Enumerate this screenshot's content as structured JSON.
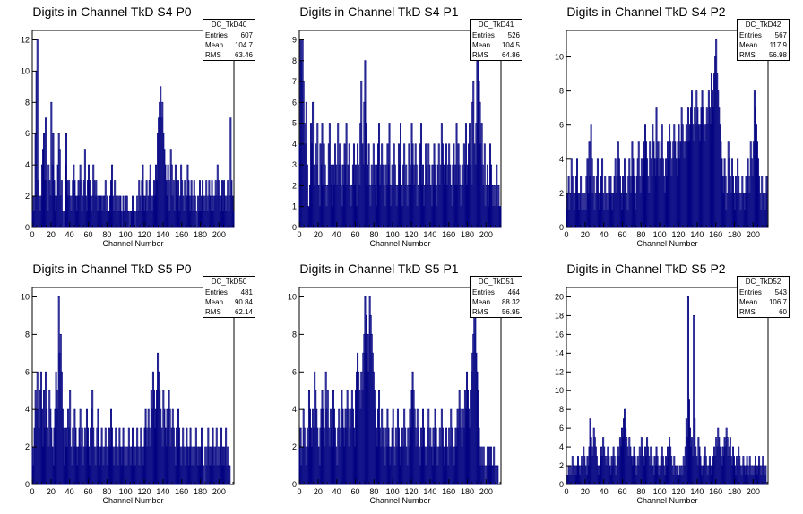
{
  "panels": [
    {
      "title": "Digits in Channel TkD S4 P0",
      "stats": {
        "name": "DC_TkD40",
        "entries_label": "Entries",
        "entries": "607",
        "mean_label": "Mean",
        "mean": "104.7",
        "rms_label": "RMS",
        "rms": "63.46"
      },
      "xlabel": "Channel Number"
    },
    {
      "title": "Digits in Channel TkD S4 P1",
      "stats": {
        "name": "DC_TkD41",
        "entries_label": "Entries",
        "entries": "526",
        "mean_label": "Mean",
        "mean": "104.5",
        "rms_label": "RMS",
        "rms": "64.86"
      },
      "xlabel": "Channel Number"
    },
    {
      "title": "Digits in Channel TkD S4 P2",
      "stats": {
        "name": "DC_TkD42",
        "entries_label": "Entries",
        "entries": "567",
        "mean_label": "Mean",
        "mean": "117.9",
        "rms_label": "RMS",
        "rms": "56.98"
      },
      "xlabel": "Channel Number"
    },
    {
      "title": "Digits in Channel TkD S5 P0",
      "stats": {
        "name": "DC_TkD50",
        "entries_label": "Entries",
        "entries": "481",
        "mean_label": "Mean",
        "mean": "90.84",
        "rms_label": "RMS",
        "rms": "62.14"
      },
      "xlabel": "Channel Number"
    },
    {
      "title": "Digits in Channel TkD S5 P1",
      "stats": {
        "name": "DC_TkD51",
        "entries_label": "Entries",
        "entries": "464",
        "mean_label": "Mean",
        "mean": "88.32",
        "rms_label": "RMS",
        "rms": "56.95"
      },
      "xlabel": "Channel Number"
    },
    {
      "title": "Digits in Channel TkD S5 P2",
      "stats": {
        "name": "DC_TkD52",
        "entries_label": "Entries",
        "entries": "543",
        "mean_label": "Mean",
        "mean": "106.7",
        "rms_label": "RMS",
        "rms": "60"
      },
      "xlabel": "Channel Number"
    }
  ],
  "colors": {
    "line": "#000080",
    "axis": "#000000",
    "frame": "#000000"
  },
  "chart_data": [
    {
      "type": "bar",
      "title": "Digits in Channel TkD S4 P0",
      "xlabel": "Channel Number",
      "ylabel": "",
      "xlim": [
        0,
        216
      ],
      "ylim": [
        0,
        12.6
      ],
      "grid": false,
      "legend": "top-right",
      "xticks": [
        0,
        20,
        40,
        60,
        80,
        100,
        120,
        140,
        160,
        180,
        200
      ],
      "yticks": [
        0,
        2,
        4,
        6,
        8,
        10,
        12
      ],
      "bin_start": 0,
      "bin_width": 1,
      "values": [
        1,
        2,
        1,
        6,
        10,
        12,
        3,
        2,
        1,
        2,
        4,
        5,
        6,
        3,
        7,
        3,
        1,
        4,
        3,
        2,
        8,
        4,
        6,
        3,
        2,
        1,
        2,
        4,
        6,
        5,
        2,
        3,
        1,
        0,
        1,
        4,
        6,
        3,
        2,
        3,
        2,
        1,
        2,
        3,
        4,
        3,
        2,
        1,
        2,
        3,
        2,
        4,
        3,
        1,
        2,
        3,
        5,
        2,
        1,
        3,
        4,
        3,
        2,
        1,
        2,
        4,
        3,
        2,
        3,
        1,
        2,
        1,
        2,
        2,
        2,
        1,
        2,
        2,
        3,
        1,
        2,
        1,
        1,
        2,
        3,
        4,
        2,
        1,
        3,
        2,
        1,
        2,
        1,
        2,
        2,
        1,
        0,
        2,
        1,
        1,
        2,
        2,
        1,
        1,
        0,
        1,
        1,
        2,
        1,
        1,
        0,
        1,
        2,
        1,
        3,
        2,
        1,
        3,
        4,
        2,
        1,
        2,
        3,
        1,
        2,
        3,
        4,
        2,
        1,
        2,
        3,
        2,
        4,
        3,
        6,
        7,
        8,
        9,
        7,
        8,
        6,
        5,
        4,
        3,
        2,
        4,
        3,
        1,
        5,
        4,
        2,
        3,
        1,
        4,
        3,
        2,
        3,
        1,
        2,
        4,
        3,
        2,
        1,
        3,
        2,
        2,
        4,
        3,
        2,
        1,
        3,
        2,
        1,
        3,
        2,
        1,
        0,
        2,
        1,
        3,
        1,
        2,
        3,
        2,
        1,
        2,
        3,
        1,
        2,
        3,
        2,
        1,
        3,
        2,
        1,
        2,
        3,
        2,
        4,
        3,
        2,
        1,
        2,
        3,
        1,
        3,
        2,
        1,
        2,
        3,
        1,
        2,
        7,
        3,
        2,
        1
      ]
    },
    {
      "type": "bar",
      "title": "Digits in Channel TkD S4 P1",
      "xlabel": "Channel Number",
      "ylabel": "",
      "xlim": [
        0,
        216
      ],
      "ylim": [
        0,
        9.45
      ],
      "grid": false,
      "legend": "top-right",
      "xticks": [
        0,
        20,
        40,
        60,
        80,
        100,
        120,
        140,
        160,
        180,
        200
      ],
      "yticks": [
        0,
        1,
        2,
        3,
        4,
        5,
        6,
        7,
        8,
        9
      ],
      "bin_start": 0,
      "bin_width": 1,
      "values": [
        4,
        9,
        8,
        9,
        7,
        5,
        4,
        6,
        3,
        1,
        1,
        2,
        5,
        4,
        6,
        3,
        2,
        4,
        3,
        5,
        2,
        1,
        4,
        3,
        5,
        2,
        4,
        3,
        2,
        1,
        2,
        4,
        5,
        3,
        2,
        1,
        3,
        2,
        4,
        3,
        2,
        5,
        3,
        4,
        2,
        1,
        3,
        2,
        4,
        3,
        5,
        2,
        3,
        4,
        2,
        1,
        2,
        3,
        4,
        2,
        3,
        1,
        4,
        3,
        2,
        5,
        7,
        4,
        3,
        6,
        8,
        5,
        2,
        3,
        4,
        2,
        1,
        3,
        2,
        4,
        3,
        2,
        1,
        3,
        4,
        5,
        2,
        3,
        4,
        3,
        2,
        1,
        3,
        2,
        4,
        3,
        5,
        2,
        1,
        3,
        2,
        4,
        3,
        2,
        1,
        2,
        4,
        3,
        5,
        2,
        1,
        3,
        4,
        2,
        3,
        1,
        2,
        4,
        3,
        2,
        5,
        4,
        3,
        2,
        4,
        3,
        1,
        2,
        3,
        4,
        5,
        2,
        3,
        1,
        2,
        4,
        3,
        2,
        4,
        3,
        2,
        1,
        3,
        2,
        4,
        3,
        2,
        1,
        3,
        4,
        2,
        3,
        5,
        4,
        3,
        2,
        3,
        4,
        2,
        3,
        4,
        3,
        2,
        1,
        3,
        4,
        2,
        3,
        5,
        2,
        4,
        3,
        2,
        1,
        3,
        2,
        4,
        3,
        5,
        2,
        3,
        4,
        5,
        3,
        2,
        6,
        7,
        4,
        3,
        5,
        8,
        9,
        7,
        6,
        4,
        5,
        3,
        2,
        4,
        1,
        2,
        3,
        1,
        2,
        4,
        3,
        2,
        1,
        2,
        1,
        2,
        3,
        1,
        2,
        1,
        1
      ]
    },
    {
      "type": "bar",
      "title": "Digits in Channel TkD S4 P2",
      "xlabel": "Channel Number",
      "ylabel": "",
      "xlim": [
        0,
        216
      ],
      "ylim": [
        0,
        11.55
      ],
      "grid": false,
      "legend": "top-right",
      "xticks": [
        0,
        20,
        40,
        60,
        80,
        100,
        120,
        140,
        160,
        180,
        200
      ],
      "yticks": [
        0,
        2,
        4,
        6,
        8,
        10
      ],
      "bin_start": 0,
      "bin_width": 1,
      "values": [
        1,
        2,
        3,
        1,
        2,
        4,
        3,
        2,
        1,
        2,
        3,
        4,
        2,
        1,
        2,
        3,
        1,
        2,
        1,
        2,
        1,
        3,
        4,
        2,
        5,
        3,
        6,
        4,
        2,
        3,
        1,
        2,
        3,
        4,
        2,
        1,
        2,
        3,
        4,
        2,
        1,
        3,
        2,
        1,
        2,
        3,
        2,
        3,
        2,
        1,
        2,
        3,
        4,
        2,
        3,
        5,
        4,
        3,
        2,
        1,
        3,
        2,
        4,
        3,
        2,
        1,
        3,
        4,
        2,
        3,
        5,
        4,
        3,
        2,
        1,
        3,
        4,
        5,
        3,
        2,
        4,
        3,
        5,
        4,
        6,
        5,
        4,
        3,
        2,
        5,
        4,
        3,
        6,
        5,
        4,
        3,
        7,
        4,
        5,
        3,
        4,
        5,
        6,
        4,
        3,
        2,
        4,
        3,
        5,
        4,
        6,
        5,
        3,
        4,
        5,
        6,
        5,
        4,
        3,
        5,
        6,
        4,
        5,
        7,
        6,
        5,
        4,
        5,
        6,
        5,
        7,
        5,
        6,
        7,
        8,
        6,
        5,
        7,
        6,
        8,
        7,
        6,
        5,
        6,
        7,
        8,
        7,
        6,
        5,
        6,
        7,
        6,
        8,
        7,
        6,
        9,
        8,
        7,
        9,
        10,
        11,
        9,
        8,
        7,
        6,
        5,
        4,
        3,
        2,
        4,
        3,
        1,
        2,
        5,
        4,
        3,
        2,
        4,
        3,
        2,
        1,
        3,
        2,
        4,
        3,
        2,
        1,
        2,
        3,
        2,
        1,
        2,
        3,
        2,
        4,
        3,
        2,
        5,
        4,
        3,
        5,
        8,
        7,
        6,
        5,
        4,
        3,
        2,
        1,
        3,
        2,
        2,
        1,
        2,
        3
      ]
    },
    {
      "type": "bar",
      "title": "Digits in Channel TkD S5 P0",
      "xlabel": "Channel Number",
      "ylabel": "",
      "xlim": [
        0,
        216
      ],
      "ylim": [
        0,
        10.5
      ],
      "grid": false,
      "legend": "top-right",
      "xticks": [
        0,
        20,
        40,
        60,
        80,
        100,
        120,
        140,
        160,
        180,
        200
      ],
      "yticks": [
        0,
        2,
        4,
        6,
        8,
        10
      ],
      "bin_start": 0,
      "bin_width": 1,
      "values": [
        2,
        1,
        3,
        5,
        4,
        6,
        4,
        3,
        5,
        6,
        4,
        2,
        5,
        3,
        6,
        4,
        3,
        2,
        5,
        4,
        3,
        2,
        1,
        3,
        4,
        6,
        5,
        4,
        10,
        7,
        8,
        6,
        4,
        3,
        1,
        2,
        3,
        2,
        4,
        3,
        5,
        2,
        1,
        3,
        2,
        4,
        3,
        2,
        1,
        2,
        3,
        4,
        2,
        3,
        1,
        2,
        3,
        2,
        4,
        3,
        2,
        1,
        3,
        4,
        5,
        3,
        2,
        1,
        2,
        3,
        4,
        2,
        1,
        2,
        3,
        2,
        1,
        2,
        3,
        2,
        1,
        2,
        3,
        2,
        4,
        3,
        2,
        1,
        2,
        3,
        2,
        1,
        2,
        3,
        2,
        1,
        2,
        3,
        2,
        1,
        2,
        1,
        2,
        3,
        2,
        1,
        2,
        3,
        1,
        2,
        1,
        2,
        3,
        2,
        1,
        2,
        3,
        2,
        1,
        2,
        3,
        4,
        3,
        2,
        4,
        3,
        2,
        5,
        4,
        6,
        5,
        3,
        4,
        5,
        7,
        6,
        5,
        4,
        3,
        2,
        5,
        4,
        3,
        2,
        4,
        3,
        5,
        4,
        2,
        3,
        4,
        3,
        2,
        1,
        3,
        2,
        4,
        3,
        2,
        1,
        2,
        3,
        2,
        1,
        2,
        3,
        2,
        1,
        2,
        3,
        2,
        1,
        2,
        1,
        2,
        3,
        2,
        1,
        2,
        1,
        2,
        3,
        2,
        1,
        0,
        2,
        1,
        2,
        3,
        1,
        2,
        1,
        2,
        3,
        2,
        1,
        2,
        3,
        1,
        2,
        1,
        2,
        3,
        1,
        2,
        1,
        2,
        3,
        1,
        2,
        1,
        1
      ]
    },
    {
      "type": "bar",
      "title": "Digits in Channel TkD S5 P1",
      "xlabel": "Channel Number",
      "ylabel": "",
      "xlim": [
        0,
        216
      ],
      "ylim": [
        0,
        10.5
      ],
      "grid": false,
      "legend": "top-right",
      "xticks": [
        0,
        20,
        40,
        60,
        80,
        100,
        120,
        140,
        160,
        180,
        200
      ],
      "yticks": [
        0,
        2,
        4,
        6,
        8,
        10
      ],
      "bin_start": 0,
      "bin_width": 1,
      "values": [
        2,
        3,
        1,
        2,
        4,
        3,
        2,
        1,
        3,
        2,
        5,
        4,
        3,
        2,
        4,
        3,
        6,
        5,
        4,
        3,
        2,
        1,
        3,
        4,
        5,
        4,
        3,
        2,
        6,
        4,
        5,
        3,
        2,
        4,
        3,
        2,
        5,
        4,
        3,
        2,
        1,
        3,
        4,
        2,
        3,
        5,
        4,
        3,
        2,
        4,
        3,
        5,
        4,
        2,
        3,
        4,
        5,
        4,
        3,
        2,
        5,
        6,
        7,
        6,
        5,
        4,
        6,
        5,
        7,
        8,
        10,
        9,
        7,
        8,
        6,
        10,
        9,
        8,
        7,
        6,
        5,
        4,
        3,
        2,
        4,
        5,
        3,
        2,
        4,
        3,
        2,
        1,
        3,
        2,
        4,
        3,
        2,
        1,
        2,
        3,
        4,
        2,
        1,
        3,
        2,
        4,
        3,
        2,
        1,
        2,
        3,
        2,
        4,
        3,
        2,
        1,
        3,
        2,
        4,
        3,
        5,
        6,
        5,
        4,
        3,
        2,
        4,
        3,
        2,
        1,
        3,
        2,
        4,
        3,
        2,
        1,
        2,
        3,
        4,
        2,
        3,
        2,
        1,
        3,
        2,
        4,
        3,
        2,
        1,
        2,
        3,
        2,
        4,
        3,
        2,
        1,
        2,
        3,
        2,
        1,
        3,
        2,
        4,
        3,
        2,
        1,
        2,
        3,
        2,
        4,
        3,
        5,
        4,
        3,
        2,
        4,
        3,
        5,
        4,
        6,
        5,
        4,
        3,
        5,
        6,
        7,
        8,
        10,
        9,
        7,
        6,
        5,
        3,
        2,
        1,
        2,
        1,
        2,
        1,
        0,
        1,
        2,
        1,
        2,
        1,
        2,
        1,
        1,
        2,
        1,
        0,
        1,
        1
      ]
    },
    {
      "type": "bar",
      "title": "Digits in Channel TkD S5 P2",
      "xlabel": "Channel Number",
      "ylabel": "",
      "xlim": [
        0,
        216
      ],
      "ylim": [
        0,
        21
      ],
      "grid": false,
      "legend": "top-right",
      "xticks": [
        0,
        20,
        40,
        60,
        80,
        100,
        120,
        140,
        160,
        180,
        200
      ],
      "yticks": [
        0,
        2,
        4,
        6,
        8,
        10,
        12,
        14,
        16,
        18,
        20
      ],
      "bin_start": 0,
      "bin_width": 1,
      "values": [
        0,
        1,
        2,
        1,
        2,
        1,
        3,
        2,
        1,
        2,
        1,
        2,
        3,
        2,
        1,
        2,
        3,
        2,
        4,
        3,
        2,
        1,
        3,
        2,
        4,
        7,
        5,
        4,
        3,
        6,
        5,
        4,
        3,
        2,
        1,
        2,
        3,
        4,
        3,
        5,
        4,
        3,
        2,
        3,
        4,
        3,
        2,
        1,
        3,
        2,
        4,
        3,
        2,
        1,
        3,
        4,
        3,
        5,
        4,
        6,
        5,
        7,
        8,
        6,
        5,
        4,
        3,
        5,
        4,
        3,
        2,
        3,
        4,
        3,
        2,
        1,
        3,
        2,
        4,
        3,
        5,
        4,
        3,
        2,
        4,
        3,
        5,
        4,
        3,
        2,
        4,
        3,
        2,
        1,
        3,
        2,
        4,
        3,
        2,
        1,
        2,
        3,
        4,
        3,
        2,
        1,
        3,
        2,
        4,
        3,
        5,
        4,
        3,
        2,
        1,
        3,
        2,
        1,
        2,
        0,
        1,
        2,
        1,
        2,
        1,
        3,
        2,
        4,
        7,
        5,
        20,
        9,
        6,
        4,
        5,
        3,
        18,
        7,
        4,
        3,
        2,
        5,
        4,
        3,
        2,
        1,
        2,
        3,
        4,
        3,
        2,
        1,
        2,
        3,
        2,
        1,
        2,
        3,
        4,
        3,
        5,
        4,
        6,
        5,
        4,
        3,
        2,
        4,
        3,
        5,
        4,
        6,
        5,
        3,
        4,
        5,
        3,
        2,
        4,
        3,
        2,
        1,
        3,
        2,
        4,
        3,
        2,
        1,
        2,
        3,
        2,
        1,
        2,
        3,
        2,
        1,
        3,
        2,
        1,
        2,
        1,
        2,
        3,
        2,
        1,
        2,
        3,
        2,
        1,
        2,
        3,
        2,
        1,
        2
      ]
    }
  ]
}
